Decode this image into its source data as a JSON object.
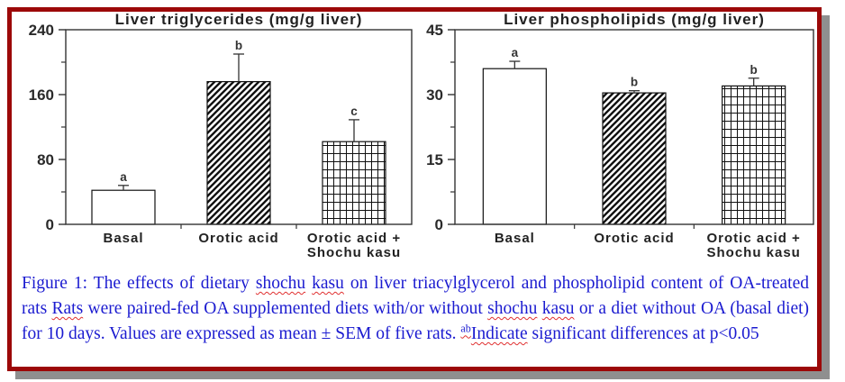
{
  "colors": {
    "border": "#9c0808",
    "shadow": "#8f8f8f",
    "caption_text": "#1b1bd0",
    "spellcheck_underline": "#e03030",
    "axis": "#333333",
    "bar_fill": "#ffffff",
    "hatch_ink": "#111111"
  },
  "chart_data": [
    {
      "type": "bar",
      "title": "Liver triglycerides  (mg/g liver)",
      "xlabel": "",
      "ylabel": "mg/g liver",
      "ylim": [
        0,
        240
      ],
      "yticks": [
        0,
        80,
        160,
        240
      ],
      "minor_ticks_between": true,
      "grid": false,
      "legend": false,
      "categories": [
        "Basal",
        "Orotic acid",
        "Orotic acid +\nShochu kasu"
      ],
      "values": [
        42,
        176,
        102
      ],
      "sem": [
        6,
        34,
        27
      ],
      "sig_letters": [
        "a",
        "b",
        "c"
      ],
      "bar_patterns": [
        "plain",
        "diagonal-hatch",
        "grid-hatch"
      ]
    },
    {
      "type": "bar",
      "title": "Liver phospholipids  (mg/g liver)",
      "xlabel": "",
      "ylabel": "mg/g liver",
      "ylim": [
        0,
        45
      ],
      "yticks": [
        0,
        15,
        30,
        45
      ],
      "minor_ticks_between": true,
      "grid": false,
      "legend": false,
      "categories": [
        "Basal",
        "Orotic acid",
        "Orotic acid +\nShochu kasu"
      ],
      "values": [
        36,
        30.4,
        32
      ],
      "sem": [
        1.7,
        0.5,
        1.8
      ],
      "sig_letters": [
        "a",
        "b",
        "b"
      ],
      "bar_patterns": [
        "plain",
        "diagonal-hatch",
        "grid-hatch"
      ]
    }
  ],
  "caption": {
    "segments": [
      {
        "text": "Figure 1: The effects of dietary "
      },
      {
        "text": "shochu",
        "wavy": true
      },
      {
        "text": " "
      },
      {
        "text": "kasu",
        "wavy": true
      },
      {
        "text": " on liver triacylglycerol and phospholipid content of OA-treated rats "
      },
      {
        "text": "Rats",
        "wavy": true
      },
      {
        "text": " were paired-fed OA supplemented diets with/or without "
      },
      {
        "text": "shochu",
        "wavy": true
      },
      {
        "text": " "
      },
      {
        "text": "kasu",
        "wavy": true
      },
      {
        "text": " or a diet without OA (basal diet) for 10 days. Values are expressed as mean ± SEM of five rats. "
      },
      {
        "text": "ab",
        "wavy": true,
        "sup": true
      },
      {
        "text": "Indicate",
        "wavy": true
      },
      {
        "text": " significant differences at p<0.05"
      }
    ]
  }
}
